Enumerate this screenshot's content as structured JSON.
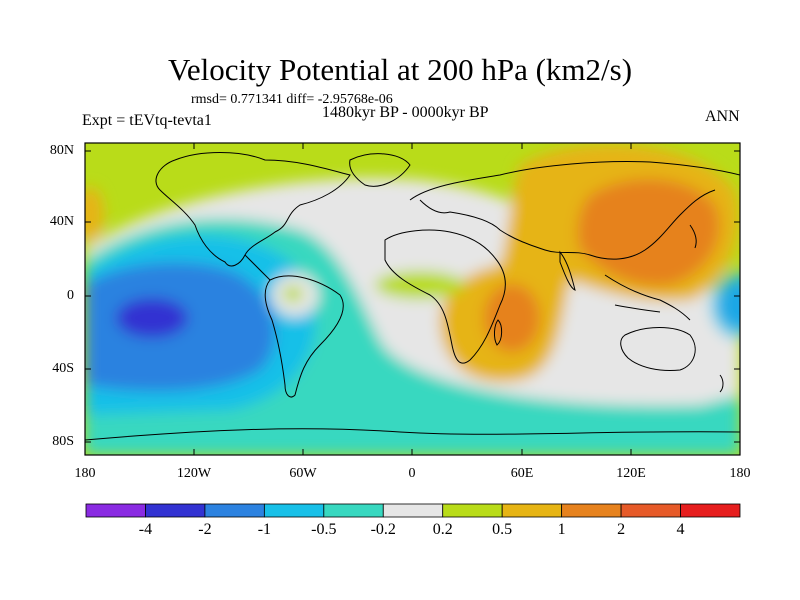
{
  "title": "Velocity Potential at 200 hPa (km2/s)",
  "stats_line": "rmsd= 0.771341 diff= -2.95768e-06",
  "experiment_line": "Expt = tEVtq-tevta1",
  "period_line": "1480kyr BP - 0000kyr BP",
  "season": "ANN",
  "y_axis_labels": [
    "80N",
    "40N",
    "0",
    "40S",
    "80S"
  ],
  "x_axis_labels": [
    "180",
    "120W",
    "60W",
    "0",
    "60E",
    "120E",
    "180"
  ],
  "colorbar": {
    "labels": [
      "-4",
      "-2",
      "-1",
      "-0.5",
      "-0.2",
      "0.2",
      "0.5",
      "1",
      "2",
      "4"
    ],
    "colors": [
      "#8a2be2",
      "#3232d2",
      "#2c82e0",
      "#18c0e8",
      "#38d8c0",
      "#e6e6e6",
      "#b9dc19",
      "#e6b414",
      "#e6821e",
      "#e65a28",
      "#e61e1e"
    ]
  }
}
